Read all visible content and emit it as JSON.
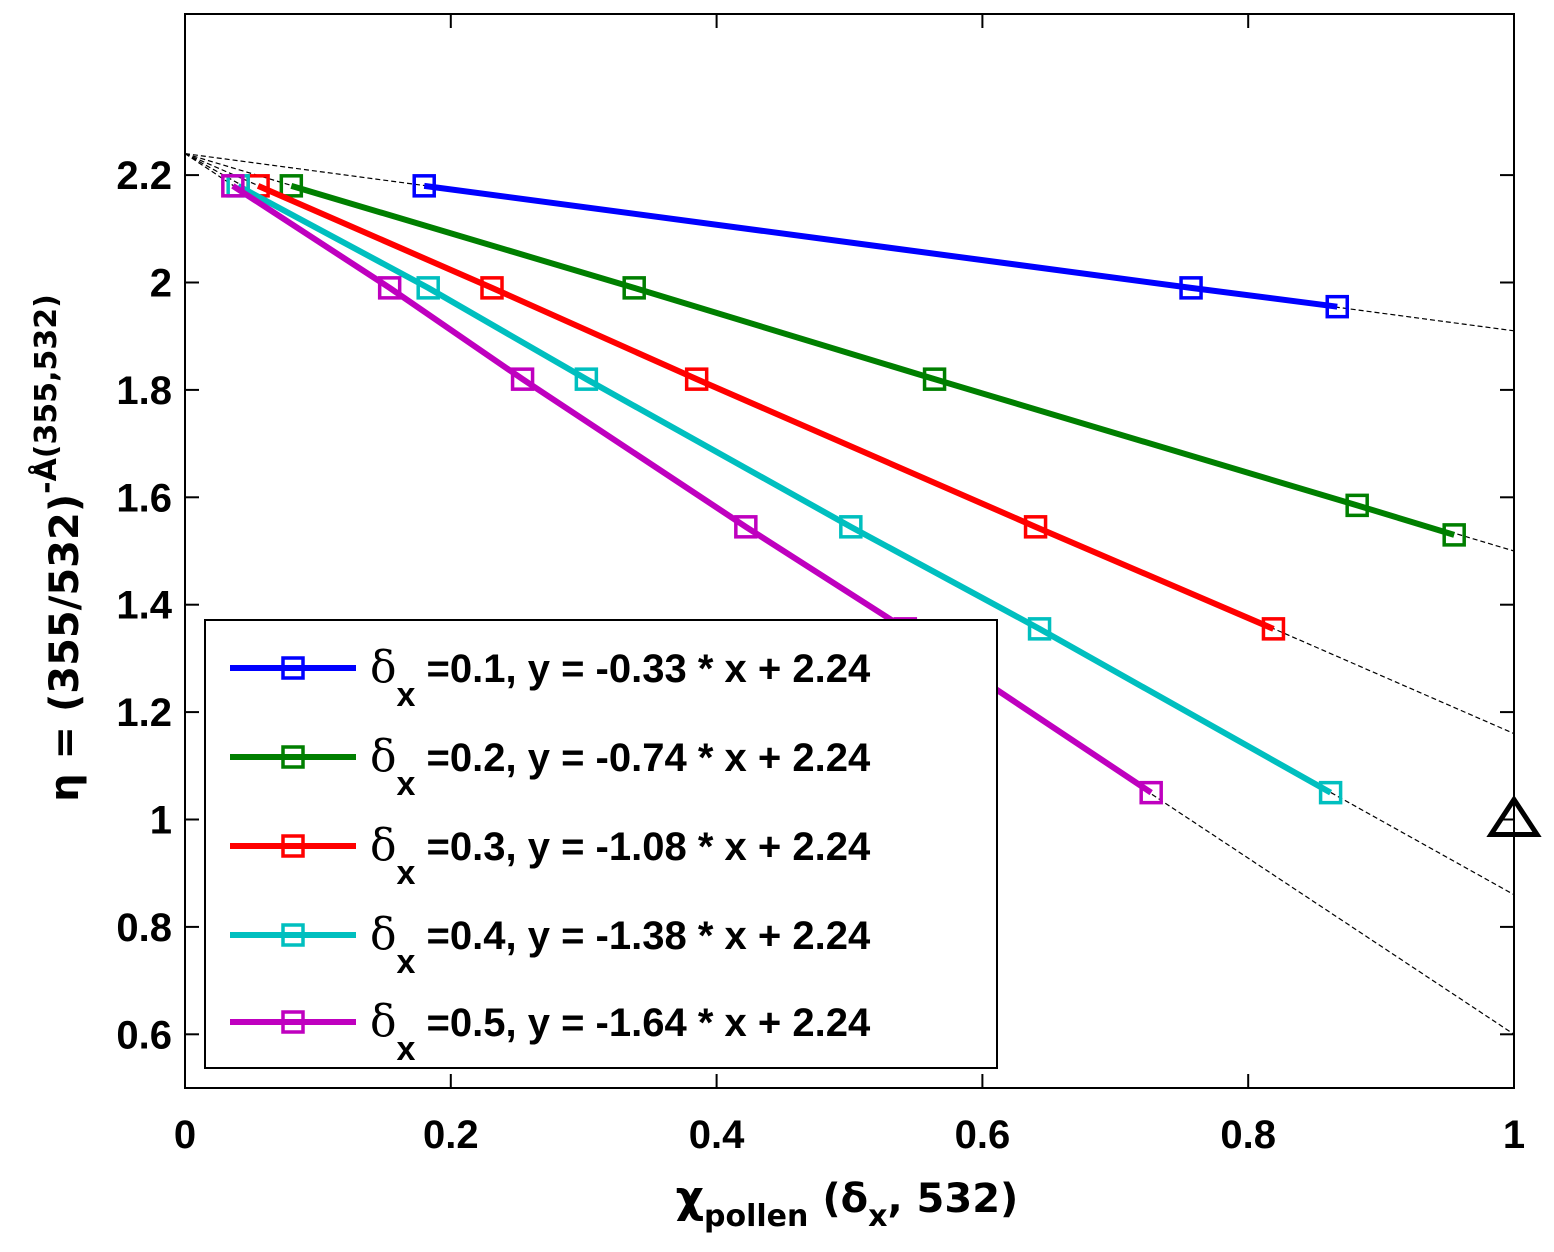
{
  "chart_data": {
    "type": "line",
    "xlabel": {
      "main": "χ",
      "sub": "pollen",
      "rest_open": " (δ",
      "rest_sub": "x",
      "rest_close": ", 532)"
    },
    "ylabel": {
      "lead": "η = (355/532)",
      "sup": "-Å(355,532)"
    },
    "xlim": [
      0,
      1
    ],
    "ylim": [
      0.5,
      2.5
    ],
    "xticks": [
      0,
      0.2,
      0.4,
      0.6,
      0.8,
      1
    ],
    "xtick_labels": [
      "0",
      "0.2",
      "0.4",
      "0.6",
      "0.8",
      "1"
    ],
    "yticks": [
      0.6,
      0.8,
      1.0,
      1.2,
      1.4,
      1.6,
      1.8,
      2.0,
      2.2
    ],
    "ytick_labels": [
      "0.6",
      "0.8",
      "1",
      "1.2",
      "1.4",
      "1.6",
      "1.8",
      "2",
      "2.2"
    ],
    "grid": false,
    "legend_position": "bottom-left",
    "intercept": 2.24,
    "series": [
      {
        "name": "δx =0.1, y = -0.33 * x + 2.24",
        "legend_delta": "δ",
        "legend_sub": "x",
        "legend_text": " =0.1, y = -0.33 * x + 2.24",
        "color": "#0000ff",
        "slope": -0.33,
        "x": [
          0.18,
          0.757,
          0.867
        ],
        "y": [
          2.18,
          1.99,
          1.955
        ]
      },
      {
        "name": "δx =0.2, y = -0.74 * x + 2.24",
        "legend_delta": "δ",
        "legend_sub": "x",
        "legend_text": " =0.2, y = -0.74 * x + 2.24",
        "color": "#007f00",
        "slope": -0.74,
        "x": [
          0.08,
          0.338,
          0.564,
          0.882,
          0.955
        ],
        "y": [
          2.18,
          1.99,
          1.82,
          1.585,
          1.53
        ]
      },
      {
        "name": "δx =0.3, y = -1.08 * x + 2.24",
        "legend_delta": "δ",
        "legend_sub": "x",
        "legend_text": " =0.3, y = -1.08 * x + 2.24",
        "color": "#ff0000",
        "slope": -1.08,
        "x": [
          0.055,
          0.231,
          0.385,
          0.64,
          0.819
        ],
        "y": [
          2.18,
          1.99,
          1.82,
          1.545,
          1.355
        ]
      },
      {
        "name": "δx =0.4, y = -1.38 * x + 2.24",
        "legend_delta": "δ",
        "legend_sub": "x",
        "legend_text": " =0.4, y = -1.38 * x + 2.24",
        "color": "#00bfbf",
        "slope": -1.38,
        "x": [
          0.04,
          0.183,
          0.302,
          0.501,
          0.643,
          0.862
        ],
        "y": [
          2.18,
          1.99,
          1.82,
          1.545,
          1.355,
          1.05
        ]
      },
      {
        "name": "δx =0.5, y = -1.64 * x + 2.24",
        "legend_delta": "δ",
        "legend_sub": "x",
        "legend_text": " =0.5, y = -1.64 * x + 2.24",
        "color": "#bf00bf",
        "slope": -1.64,
        "x": [
          0.036,
          0.154,
          0.254,
          0.422,
          0.542,
          0.727
        ],
        "y": [
          2.18,
          1.99,
          1.82,
          1.545,
          1.355,
          1.05
        ]
      }
    ],
    "triangle_marker": {
      "x": 1.0,
      "y": 1.0,
      "symbol": "triangle"
    }
  }
}
